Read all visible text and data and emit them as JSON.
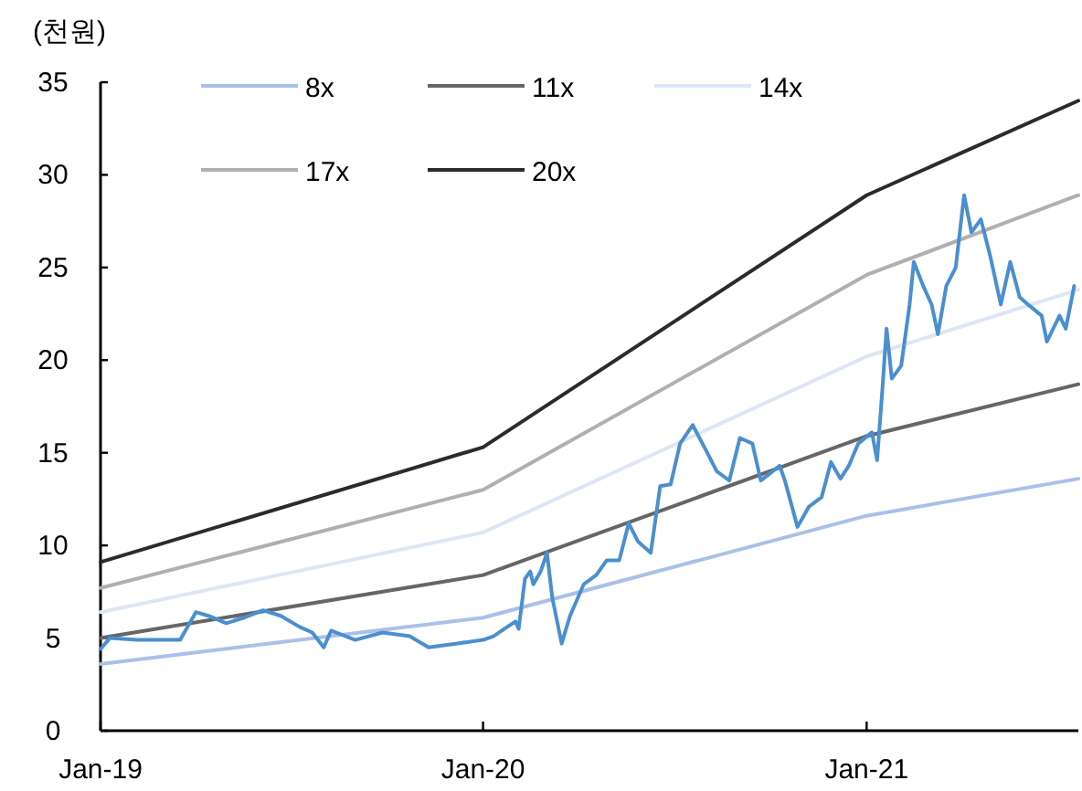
{
  "chart_data": {
    "type": "line",
    "ylabel": "(천원)",
    "legend": "top left",
    "xlim": [
      "2019-01-01",
      "2021-07-22"
    ],
    "ylim": [
      0,
      35
    ],
    "xticks": [
      {
        "value": "2019-01-01",
        "label": "Jan-19"
      },
      {
        "value": "2020-01-01",
        "label": "Jan-20"
      },
      {
        "value": "2021-01-01",
        "label": "Jan-21"
      }
    ],
    "yticks": [
      0,
      5,
      10,
      15,
      20,
      25,
      30,
      35
    ],
    "series": [
      {
        "name": "8x",
        "color": "#a9c1e8",
        "x": [
          "2019-01-01",
          "2020-01-01",
          "2021-01-01",
          "2021-07-22"
        ],
        "values": [
          3.6,
          6.1,
          11.6,
          13.6
        ]
      },
      {
        "name": "11x",
        "color": "#666666",
        "x": [
          "2019-01-01",
          "2020-01-01",
          "2021-01-01",
          "2021-07-22"
        ],
        "values": [
          5.0,
          8.4,
          15.9,
          18.7
        ]
      },
      {
        "name": "14x",
        "color": "#dde6f7",
        "x": [
          "2019-01-01",
          "2020-01-01",
          "2021-01-01",
          "2021-07-22"
        ],
        "values": [
          6.4,
          10.7,
          20.2,
          23.8
        ]
      },
      {
        "name": "17x",
        "color": "#b0b0b0",
        "x": [
          "2019-01-01",
          "2020-01-01",
          "2021-01-01",
          "2021-07-22"
        ],
        "values": [
          7.7,
          13.0,
          24.6,
          28.9
        ]
      },
      {
        "name": "20x",
        "color": "#2b2b2b",
        "x": [
          "2019-01-01",
          "2020-01-01",
          "2021-01-01",
          "2021-07-22"
        ],
        "values": [
          9.1,
          15.3,
          28.9,
          34.0
        ]
      },
      {
        "color": "#4a8fd0",
        "x": [
          "2019-01-01",
          "2019-01-10",
          "2019-02-05",
          "2019-03-18",
          "2019-04-02",
          "2019-04-14",
          "2019-05-01",
          "2019-05-18",
          "2019-06-05",
          "2019-06-22",
          "2019-07-10",
          "2019-07-22",
          "2019-08-02",
          "2019-08-09",
          "2019-09-01",
          "2019-09-27",
          "2019-10-23",
          "2019-11-10",
          "2019-12-06",
          "2020-01-01",
          "2020-01-11",
          "2020-01-24",
          "2020-02-01",
          "2020-02-04",
          "2020-02-10",
          "2020-02-15",
          "2020-02-18",
          "2020-02-25",
          "2020-03-02",
          "2020-03-07",
          "2020-03-16",
          "2020-03-24",
          "2020-04-06",
          "2020-04-18",
          "2020-04-28",
          "2020-05-10",
          "2020-05-19",
          "2020-05-28",
          "2020-06-09",
          "2020-06-18",
          "2020-06-28",
          "2020-07-07",
          "2020-07-19",
          "2020-08-01",
          "2020-08-11",
          "2020-08-23",
          "2020-09-02",
          "2020-09-14",
          "2020-09-22",
          "2020-10-10",
          "2020-10-15",
          "2020-10-27",
          "2020-11-07",
          "2020-11-19",
          "2020-11-28",
          "2020-12-07",
          "2020-12-15",
          "2020-12-24",
          "2021-01-06",
          "2021-01-11",
          "2021-01-16",
          "2021-01-20",
          "2021-01-25",
          "2021-02-03",
          "2021-02-11",
          "2021-02-15",
          "2021-02-24",
          "2021-03-04",
          "2021-03-10",
          "2021-03-18",
          "2021-03-27",
          "2021-04-04",
          "2021-04-11",
          "2021-04-20",
          "2021-04-29",
          "2021-05-09",
          "2021-05-18",
          "2021-05-27",
          "2021-06-04",
          "2021-06-17",
          "2021-06-22",
          "2021-07-04",
          "2021-07-10",
          "2021-07-18"
        ],
        "values": [
          4.4,
          5.0,
          4.9,
          4.9,
          6.4,
          6.2,
          5.8,
          6.1,
          6.5,
          6.2,
          5.6,
          5.3,
          4.5,
          5.4,
          4.9,
          5.3,
          5.1,
          4.5,
          4.7,
          4.9,
          5.1,
          5.6,
          5.9,
          5.5,
          8.2,
          8.6,
          7.9,
          8.6,
          9.6,
          7.2,
          4.7,
          6.2,
          7.9,
          8.4,
          9.2,
          9.2,
          11.2,
          10.2,
          9.6,
          13.2,
          13.3,
          15.5,
          16.5,
          15.1,
          14.0,
          13.5,
          15.8,
          15.5,
          13.5,
          14.3,
          13.5,
          11.0,
          12.1,
          12.6,
          14.5,
          13.6,
          14.3,
          15.5,
          16.1,
          14.6,
          18.4,
          21.7,
          19.0,
          19.7,
          23.0,
          25.3,
          24.0,
          23.0,
          21.4,
          24.0,
          25.0,
          28.9,
          26.9,
          27.6,
          25.6,
          23.0,
          25.3,
          23.4,
          23.0,
          22.4,
          21.0,
          22.4,
          21.7,
          24.0
        ]
      }
    ]
  }
}
